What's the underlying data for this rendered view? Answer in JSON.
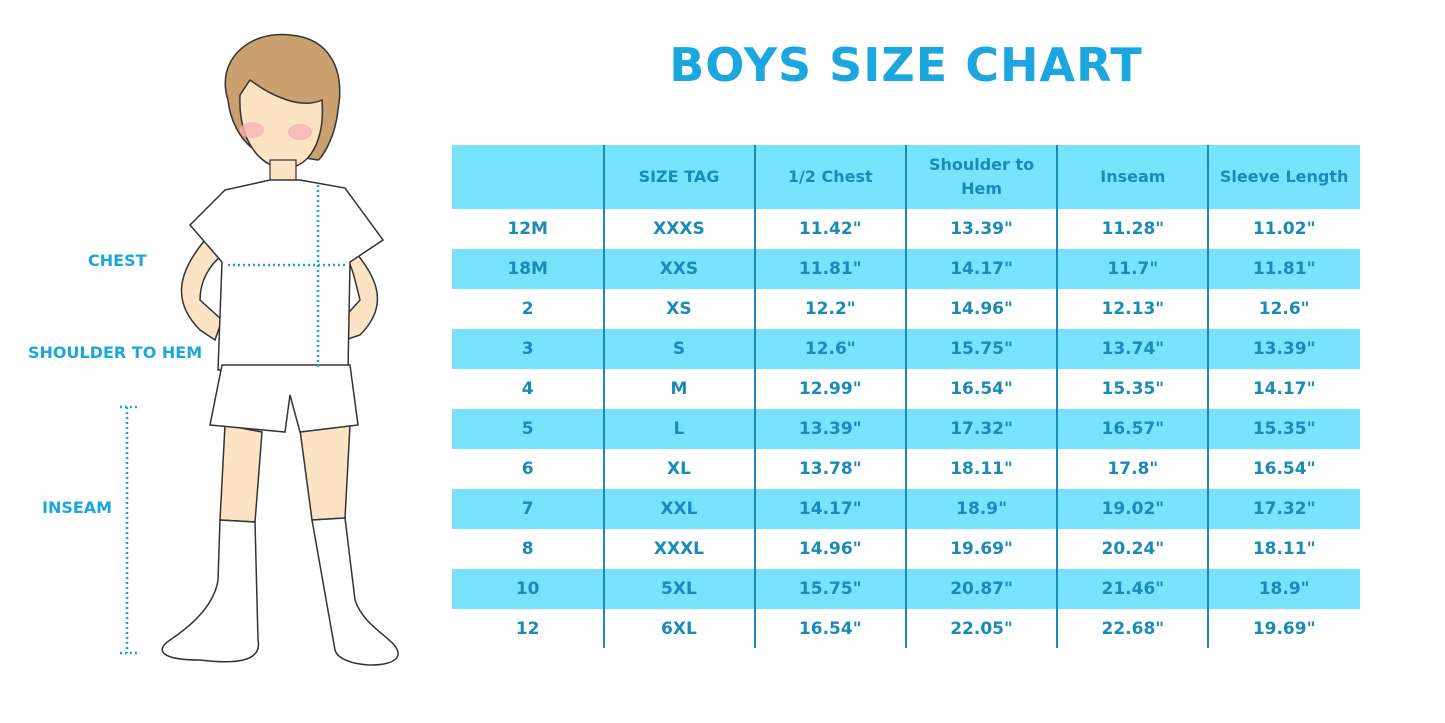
{
  "title": "BOYS SIZE CHART",
  "figure_labels": {
    "chest": "CHEST",
    "shoulder_to_hem": "SHOULDER TO HEM",
    "inseam": "INSEAM"
  },
  "colors": {
    "title": "#1ba6e0",
    "header_bg": "#79e3fd",
    "text": "#1a8ab8"
  },
  "table": {
    "headers": [
      "",
      "SIZE TAG",
      "1/2 Chest",
      "Shoulder to Hem",
      "Inseam",
      "Sleeve Length"
    ],
    "rows": [
      [
        "12M",
        "XXXS",
        "11.42\"",
        "13.39\"",
        "11.28\"",
        "11.02\""
      ],
      [
        "18M",
        "XXS",
        "11.81\"",
        "14.17\"",
        "11.7\"",
        "11.81\""
      ],
      [
        "2",
        "XS",
        "12.2\"",
        "14.96\"",
        "12.13\"",
        "12.6\""
      ],
      [
        "3",
        "S",
        "12.6\"",
        "15.75\"",
        "13.74\"",
        "13.39\""
      ],
      [
        "4",
        "M",
        "12.99\"",
        "16.54\"",
        "15.35\"",
        "14.17\""
      ],
      [
        "5",
        "L",
        "13.39\"",
        "17.32\"",
        "16.57\"",
        "15.35\""
      ],
      [
        "6",
        "XL",
        "13.78\"",
        "18.11\"",
        "17.8\"",
        "16.54\""
      ],
      [
        "7",
        "XXL",
        "14.17\"",
        "18.9\"",
        "19.02\"",
        "17.32\""
      ],
      [
        "8",
        "XXXL",
        "14.96\"",
        "19.69\"",
        "20.24\"",
        "18.11\""
      ],
      [
        "10",
        "5XL",
        "15.75\"",
        "20.87\"",
        "21.46\"",
        "18.9\""
      ],
      [
        "12",
        "6XL",
        "16.54\"",
        "22.05\"",
        "22.68\"",
        "19.69\""
      ]
    ]
  }
}
